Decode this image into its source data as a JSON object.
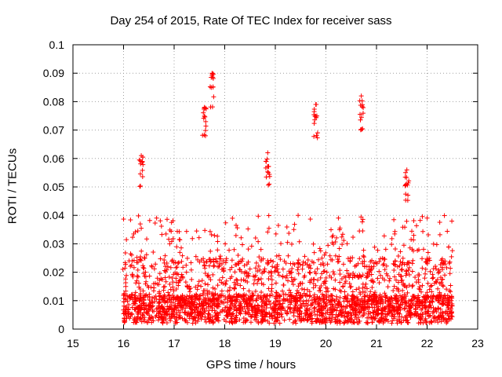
{
  "chart_data": {
    "type": "scatter",
    "title": "Day 254 of 2015, Rate Of TEC Index for receiver sass",
    "xlabel": "GPS time / hours",
    "ylabel": "ROTI / TECUs",
    "xlim": [
      15,
      23
    ],
    "ylim": [
      0,
      0.1
    ],
    "xticks": [
      "15",
      "16",
      "17",
      "18",
      "19",
      "20",
      "21",
      "22",
      "23"
    ],
    "yticks": [
      "0",
      "0.01",
      "0.02",
      "0.03",
      "0.04",
      "0.05",
      "0.06",
      "0.07",
      "0.08",
      "0.09",
      "0.1"
    ],
    "grid": true,
    "marker": "+",
    "color": "#ff0000",
    "time_range": [
      15.98,
      22.5
    ],
    "notable_peaks": [
      {
        "x": 16.35,
        "y": 0.061
      },
      {
        "x": 17.6,
        "y": 0.078
      },
      {
        "x": 17.75,
        "y": 0.09
      },
      {
        "x": 18.85,
        "y": 0.062
      },
      {
        "x": 19.8,
        "y": 0.079
      },
      {
        "x": 20.7,
        "y": 0.082
      },
      {
        "x": 21.6,
        "y": 0.056
      }
    ]
  }
}
